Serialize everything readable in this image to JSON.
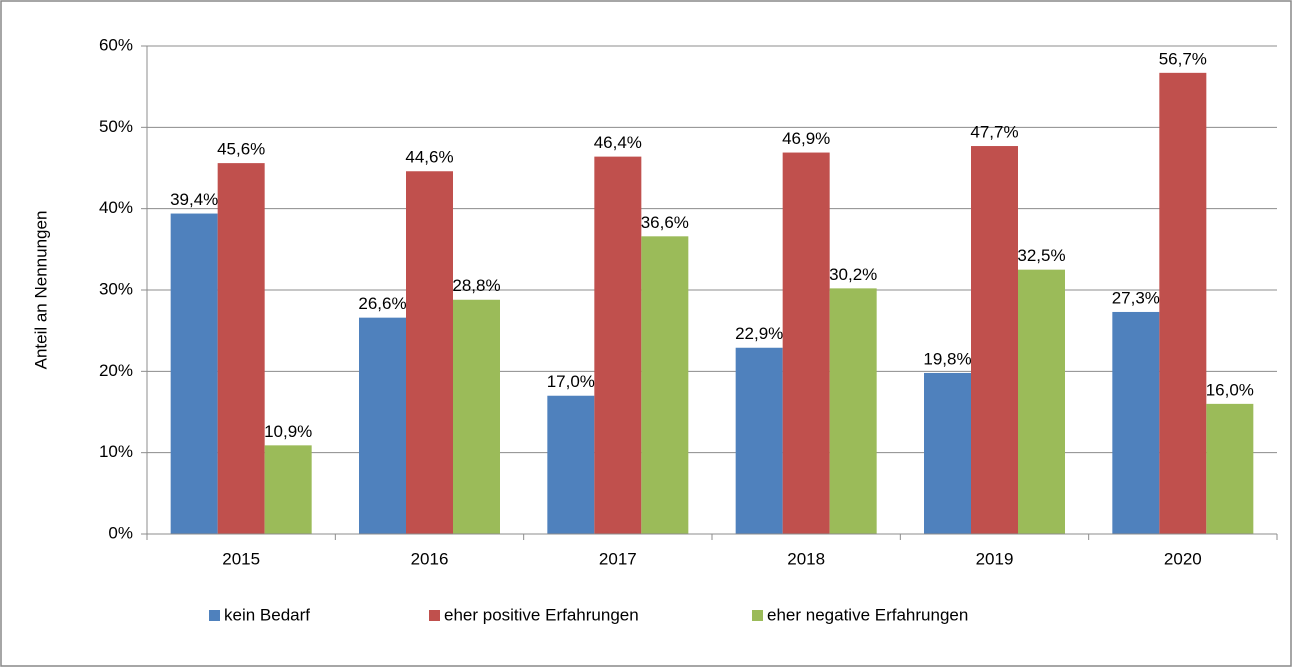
{
  "chart_data": {
    "type": "bar",
    "y_label": "Anteil an Nennungen",
    "categories": [
      "2015",
      "2016",
      "2017",
      "2018",
      "2019",
      "2020"
    ],
    "series": [
      {
        "name": "kein Bedarf",
        "color": "#4f81bd",
        "values": [
          39.4,
          26.6,
          17.0,
          22.9,
          19.8,
          27.3
        ],
        "value_labels": [
          "39,4%",
          "26,6%",
          "17,0%",
          "22,9%",
          "19,8%",
          "27,3%"
        ]
      },
      {
        "name": "eher positive Erfahrungen",
        "color": "#c0504d",
        "values": [
          45.6,
          44.6,
          46.4,
          46.9,
          47.7,
          56.7
        ],
        "value_labels": [
          "45,6%",
          "44,6%",
          "46,4%",
          "46,9%",
          "47,7%",
          "56,7%"
        ]
      },
      {
        "name": "eher negative Erfahrungen",
        "color": "#9bbb59",
        "values": [
          10.9,
          28.8,
          36.6,
          30.2,
          32.5,
          16.0
        ],
        "value_labels": [
          "10,9%",
          "28,8%",
          "36,6%",
          "30,2%",
          "32,5%",
          "16,0%"
        ]
      }
    ],
    "ylim": [
      0,
      60
    ],
    "yticks": [
      {
        "value": 0,
        "label": "0%"
      },
      {
        "value": 10,
        "label": "10%"
      },
      {
        "value": 20,
        "label": "20%"
      },
      {
        "value": 30,
        "label": "30%"
      },
      {
        "value": 40,
        "label": "40%"
      },
      {
        "value": 50,
        "label": "50%"
      },
      {
        "value": 60,
        "label": "60%"
      }
    ],
    "grid": true,
    "legend": "bottom"
  }
}
